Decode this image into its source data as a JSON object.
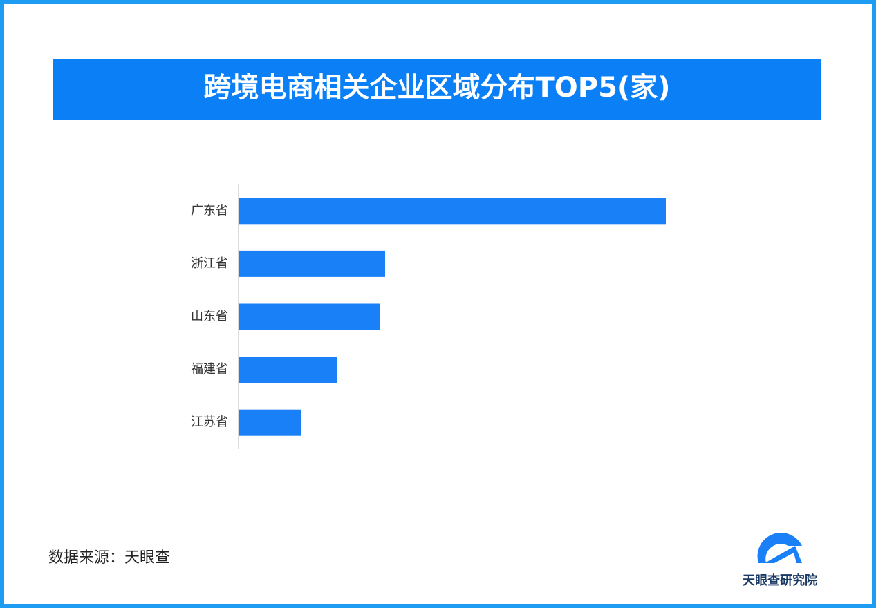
{
  "chart_data": {
    "type": "hbar",
    "title": "跨境电商相关企业区域分布TOP5(家)",
    "categories": [
      "广东省",
      "浙江省",
      "山东省",
      "福建省",
      "江苏省"
    ],
    "values": [
      618,
      212,
      204,
      143,
      91
    ],
    "color": "#1a80f7"
  },
  "footer": {
    "source": "数据来源：天眼查",
    "logo_text": "天眼查研究院"
  }
}
